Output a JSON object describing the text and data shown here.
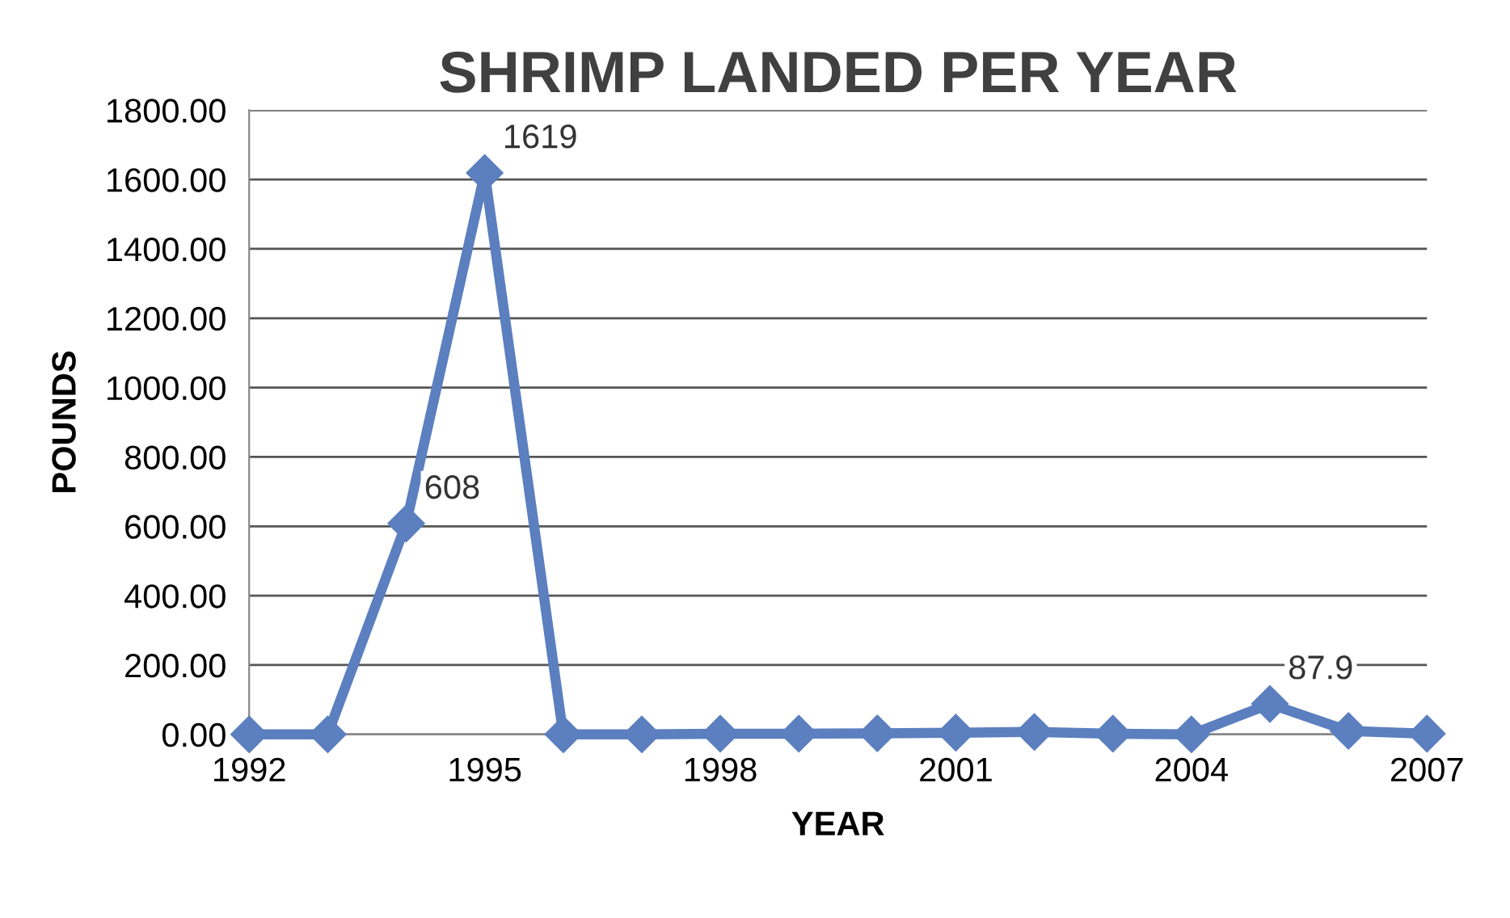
{
  "chart_data": {
    "type": "line",
    "title": "SHRIMP LANDED PER YEAR",
    "xlabel": "YEAR",
    "ylabel": "POUNDS",
    "x": [
      1992,
      1993,
      1994,
      1995,
      1996,
      1997,
      1998,
      1999,
      2000,
      2001,
      2002,
      2003,
      2004,
      2005,
      2006,
      2007
    ],
    "series": [
      {
        "color": "#5b7fbf",
        "values": [
          0,
          0,
          608,
          1619,
          0,
          0,
          2,
          2,
          3,
          5,
          7,
          2,
          0,
          87.9,
          10,
          2
        ],
        "value_labels": [
          null,
          null,
          "608",
          "1619",
          null,
          null,
          null,
          null,
          null,
          null,
          null,
          null,
          null,
          "87.9",
          null,
          null
        ]
      }
    ],
    "xlim": [
      1992,
      2007
    ],
    "xticks": [
      1992,
      1995,
      1998,
      2001,
      2004,
      2007
    ],
    "ylim": [
      0,
      1800
    ],
    "yticks": [
      {
        "value": 0,
        "label": "0.00"
      },
      {
        "value": 200,
        "label": "200.00"
      },
      {
        "value": 400,
        "label": "400.00"
      },
      {
        "value": 600,
        "label": "600.00"
      },
      {
        "value": 800,
        "label": "800.00"
      },
      {
        "value": 1000,
        "label": "1000.00"
      },
      {
        "value": 1200,
        "label": "1200.00"
      },
      {
        "value": 1400,
        "label": "1400.00"
      },
      {
        "value": 1600,
        "label": "1600.00"
      },
      {
        "value": 1800,
        "label": "1800.00"
      }
    ],
    "grid": "y",
    "marker": "diamond",
    "line_style": "solid",
    "legend": false
  }
}
